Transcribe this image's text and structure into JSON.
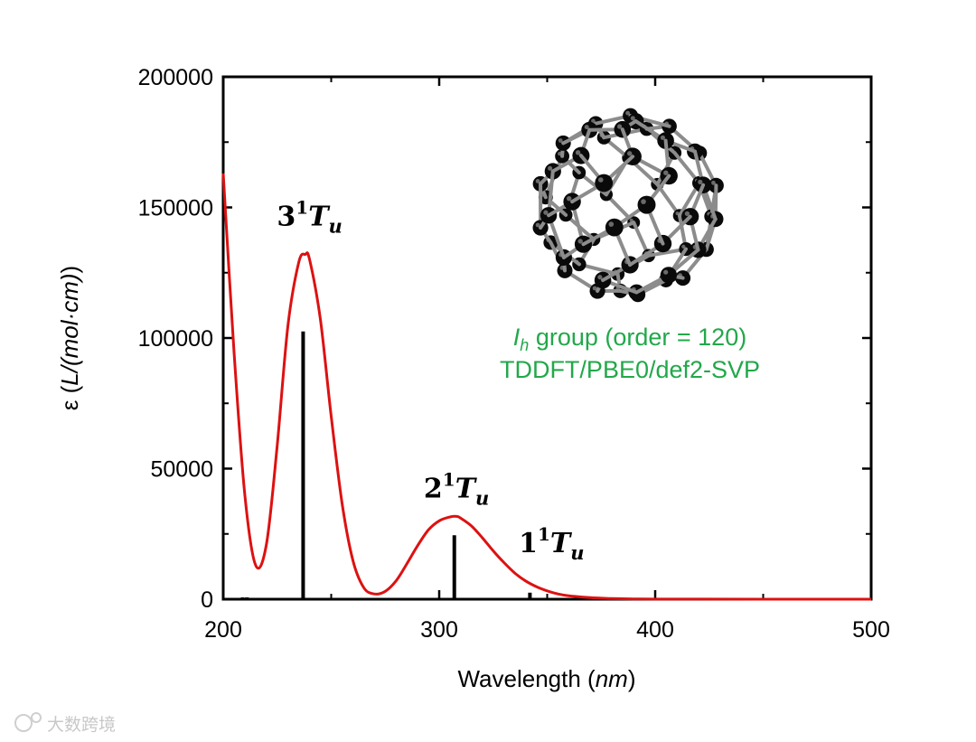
{
  "chart_data": {
    "type": "line",
    "xlabel": {
      "main": "Wavelength (",
      "unit": "nm",
      "close": ")"
    },
    "ylabel": {
      "prefix": "ε (",
      "unit": "L/(mol·cm)",
      "close": ")"
    },
    "xlim": [
      200,
      500
    ],
    "ylim": [
      0,
      200000
    ],
    "xticks": [
      200,
      300,
      400,
      500
    ],
    "yticks": [
      0,
      50000,
      100000,
      150000,
      200000
    ],
    "grid": false,
    "series": [
      {
        "style": "spectrum-curve",
        "color": "#dd1111",
        "x": [
          200,
          205,
          210,
          215,
          220,
          225,
          230,
          235,
          238,
          240,
          245,
          250,
          255,
          260,
          265,
          270,
          275,
          280,
          285,
          290,
          295,
          300,
          305,
          308,
          310,
          315,
          320,
          325,
          330,
          335,
          340,
          345,
          350,
          355,
          360,
          370,
          380,
          390,
          400,
          420,
          450,
          500
        ],
        "y": [
          163000,
          95000,
          40000,
          13000,
          21000,
          59000,
          105000,
          129000,
          132000,
          130000,
          107000,
          70000,
          37000,
          15000,
          4500,
          2000,
          3000,
          7000,
          13500,
          20500,
          26500,
          30000,
          31500,
          31700,
          31000,
          28000,
          23500,
          18500,
          14000,
          10000,
          7000,
          4800,
          3200,
          2000,
          1300,
          600,
          250,
          100,
          50,
          20,
          5,
          0
        ]
      }
    ],
    "sticks": {
      "color": "#000000",
      "x": [
        209,
        211,
        237,
        307,
        342
      ],
      "y": [
        700,
        700,
        102500,
        24500,
        2500
      ]
    },
    "annotations": [
      {
        "level": "3",
        "spin": "1",
        "sym": "T",
        "sub": "u",
        "x": 240,
        "y": 143000
      },
      {
        "level": "2",
        "spin": "1",
        "sym": "T",
        "sub": "u",
        "x": 308,
        "y": 39000
      },
      {
        "level": "1",
        "spin": "1",
        "sym": "T",
        "sub": "u",
        "x": 352,
        "y": 18000
      }
    ]
  },
  "inset": {
    "molecule_icon": "c60-buckminsterfullerene-icon",
    "group_symbol": "I",
    "group_subscript": "h",
    "group_text": " group (order = 120)",
    "method_text": "TDDFT/PBE0/def2-SVP",
    "text_color": "#22a84a"
  },
  "watermark": "大数跨境"
}
